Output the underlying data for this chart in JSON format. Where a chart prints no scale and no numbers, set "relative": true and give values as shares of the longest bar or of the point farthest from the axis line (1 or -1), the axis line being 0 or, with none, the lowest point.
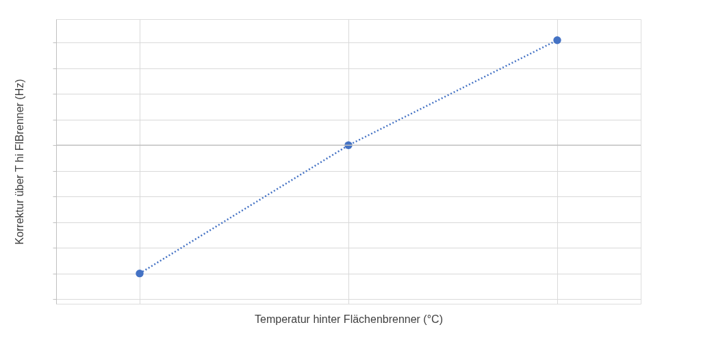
{
  "chart_data": {
    "type": "line",
    "xlabel": "Temperatur hinter Flächenbrenner (°C)",
    "ylabel": "Korrektur über T hi FlBrenner (Hz)",
    "relative": true,
    "categories": [
      null,
      null,
      null
    ],
    "series": [
      {
        "color": "#4472c4",
        "values": [
          -1,
          0,
          0.82
        ]
      }
    ],
    "marker": "circle",
    "line_style": "dotted",
    "grid": true,
    "tick_labels": false
  }
}
